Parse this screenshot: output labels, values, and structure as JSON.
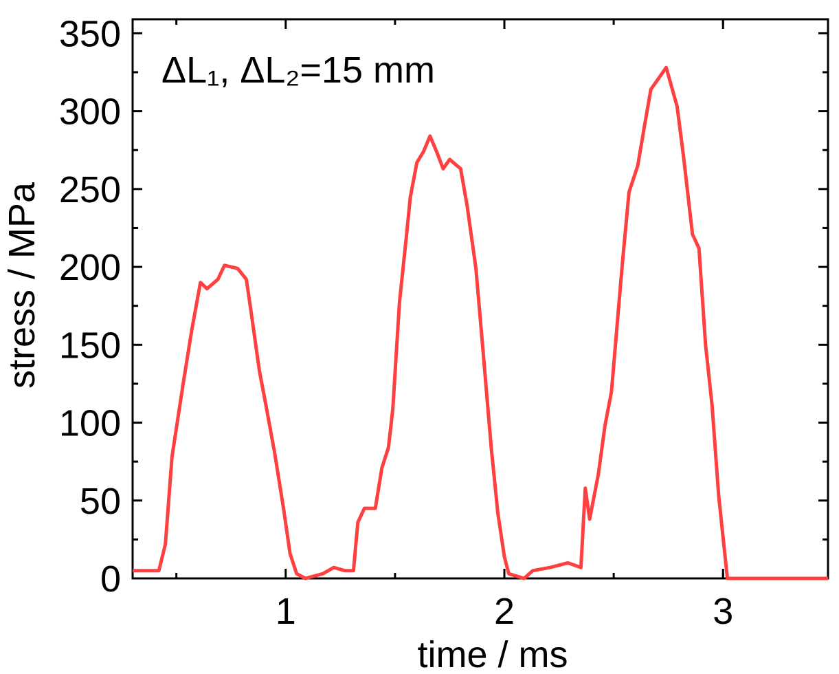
{
  "chart_data": {
    "type": "line",
    "annotation": "ΔL₁, ΔL₂=15 mm",
    "x_label": "time / ms",
    "y_label": "stress / MPa",
    "xlim": [
      0.3,
      3.48
    ],
    "ylim": [
      0,
      359
    ],
    "xticks": [
      1,
      2,
      3
    ],
    "yticks": [
      0,
      50,
      100,
      150,
      200,
      250,
      300,
      350
    ],
    "xminorticks": [
      0.5,
      1.5,
      2.5,
      3.0
    ],
    "yminorticks": [
      25,
      75,
      125,
      175,
      225,
      275,
      325
    ],
    "series": [
      {
        "name": "stress",
        "color": "#ff4040",
        "x": [
          0.3,
          0.42,
          0.45,
          0.48,
          0.53,
          0.57,
          0.61,
          0.64,
          0.69,
          0.72,
          0.78,
          0.82,
          0.84,
          0.88,
          0.91,
          0.95,
          0.99,
          1.02,
          1.05,
          1.09,
          1.17,
          1.22,
          1.27,
          1.31,
          1.33,
          1.36,
          1.41,
          1.44,
          1.47,
          1.49,
          1.52,
          1.55,
          1.57,
          1.6,
          1.63,
          1.66,
          1.69,
          1.72,
          1.75,
          1.8,
          1.83,
          1.87,
          1.9,
          1.94,
          1.97,
          2.0,
          2.02,
          2.09,
          2.13,
          2.21,
          2.29,
          2.35,
          2.37,
          2.39,
          2.43,
          2.46,
          2.49,
          2.52,
          2.54,
          2.57,
          2.61,
          2.64,
          2.67,
          2.7,
          2.74,
          2.76,
          2.79,
          2.82,
          2.86,
          2.89,
          2.92,
          2.95,
          2.98,
          3.02,
          3.48
        ],
        "values": [
          5,
          5,
          22,
          78,
          124,
          159,
          190,
          186,
          192,
          201,
          199,
          192,
          173,
          133,
          111,
          80,
          45,
          16,
          3,
          0,
          3,
          7,
          5,
          5,
          36,
          45,
          45,
          71,
          84,
          109,
          177,
          217,
          245,
          267,
          274,
          284,
          274,
          263,
          269,
          263,
          239,
          199,
          150,
          84,
          42,
          14,
          3,
          0,
          5,
          7,
          10,
          7,
          58,
          38,
          67,
          98,
          120,
          170,
          203,
          248,
          265,
          290,
          314,
          320,
          328,
          318,
          303,
          270,
          221,
          212,
          150,
          111,
          53,
          0,
          0
        ]
      }
    ]
  }
}
